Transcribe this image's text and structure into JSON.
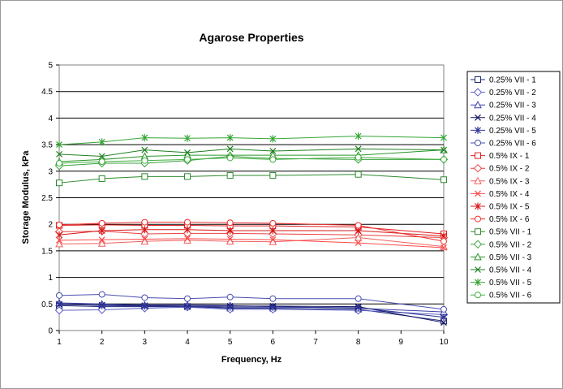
{
  "chart_data": {
    "type": "line",
    "title": "Agarose Properties",
    "xlabel": "Frequency, Hz",
    "ylabel": "Storage Modulus, kPa",
    "xlim": [
      1,
      10
    ],
    "ylim": [
      0,
      5
    ],
    "x_ticks": [
      "1",
      "2",
      "3",
      "4",
      "5",
      "6",
      "7",
      "8",
      "9",
      "10"
    ],
    "y_ticks": [
      "0",
      "0.5",
      "1",
      "1.5",
      "2",
      "2.5",
      "3",
      "3.5",
      "4",
      "4.5",
      "5"
    ],
    "grid": "horizontal",
    "legend_position": "right",
    "x": [
      1,
      2,
      3,
      4,
      5,
      6,
      8,
      10
    ],
    "series": [
      {
        "name": "0.25% VII - 1",
        "color": "#1f2a78",
        "marker": "square",
        "values": [
          0.47,
          0.45,
          0.45,
          0.45,
          0.42,
          0.42,
          0.4,
          0.18
        ]
      },
      {
        "name": "0.25% VII - 2",
        "color": "#5b5fc7",
        "marker": "diamond",
        "values": [
          0.38,
          0.39,
          0.42,
          0.44,
          0.4,
          0.4,
          0.38,
          0.3
        ]
      },
      {
        "name": "0.25% VII - 3",
        "color": "#3a3fa8",
        "marker": "triangle",
        "values": [
          0.52,
          0.5,
          0.48,
          0.48,
          0.47,
          0.45,
          0.42,
          0.35
        ]
      },
      {
        "name": "0.25% VII - 4",
        "color": "#10135e",
        "marker": "x",
        "values": [
          0.49,
          0.48,
          0.47,
          0.46,
          0.46,
          0.46,
          0.45,
          0.15
        ]
      },
      {
        "name": "0.25% VII - 5",
        "color": "#2f3596",
        "marker": "star",
        "values": [
          0.5,
          0.47,
          0.46,
          0.45,
          0.44,
          0.44,
          0.43,
          0.25
        ]
      },
      {
        "name": "0.25% VII - 6",
        "color": "#4a4fb0",
        "marker": "circle",
        "values": [
          0.66,
          0.68,
          0.62,
          0.6,
          0.63,
          0.6,
          0.6,
          0.4
        ]
      },
      {
        "name": "0.5% IX - 1",
        "color": "#e02020",
        "marker": "square",
        "values": [
          1.98,
          1.99,
          1.98,
          1.98,
          1.97,
          1.97,
          1.95,
          1.82
        ]
      },
      {
        "name": "0.5% IX - 2",
        "color": "#e84040",
        "marker": "diamond",
        "values": [
          1.86,
          1.87,
          1.82,
          1.83,
          1.83,
          1.82,
          1.8,
          1.75
        ]
      },
      {
        "name": "0.5% IX - 3",
        "color": "#f06060",
        "marker": "triangle",
        "values": [
          1.63,
          1.64,
          1.68,
          1.7,
          1.68,
          1.67,
          1.75,
          1.58
        ]
      },
      {
        "name": "0.5% IX - 4",
        "color": "#ff4a4a",
        "marker": "x",
        "values": [
          1.7,
          1.71,
          1.72,
          1.73,
          1.72,
          1.71,
          1.65,
          1.56
        ]
      },
      {
        "name": "0.5% IX - 5",
        "color": "#d81818",
        "marker": "star",
        "values": [
          1.8,
          1.88,
          1.9,
          1.9,
          1.88,
          1.88,
          1.88,
          1.78
        ]
      },
      {
        "name": "0.5% IX - 6",
        "color": "#f03030",
        "marker": "circle",
        "values": [
          1.99,
          2.02,
          2.04,
          2.04,
          2.03,
          2.02,
          1.98,
          1.68
        ]
      },
      {
        "name": "0.5% VII - 1",
        "color": "#2e8b2e",
        "marker": "square",
        "values": [
          2.78,
          2.86,
          2.9,
          2.9,
          2.92,
          2.92,
          2.94,
          2.84
        ]
      },
      {
        "name": "0.5% VII - 2",
        "color": "#3ca03c",
        "marker": "diamond",
        "values": [
          3.1,
          3.15,
          3.15,
          3.2,
          3.28,
          3.24,
          3.22,
          3.22
        ]
      },
      {
        "name": "0.5% VII - 3",
        "color": "#2a962a",
        "marker": "triangle",
        "values": [
          3.18,
          3.22,
          3.28,
          3.3,
          3.3,
          3.3,
          3.3,
          3.4
        ]
      },
      {
        "name": "0.5% VII - 4",
        "color": "#1f7f1f",
        "marker": "x",
        "values": [
          3.32,
          3.28,
          3.4,
          3.35,
          3.42,
          3.38,
          3.42,
          3.4
        ]
      },
      {
        "name": "0.5% VII - 5",
        "color": "#35a535",
        "marker": "star",
        "values": [
          3.5,
          3.55,
          3.63,
          3.62,
          3.63,
          3.61,
          3.66,
          3.63
        ]
      },
      {
        "name": "0.5% VII - 6",
        "color": "#40b040",
        "marker": "circle",
        "values": [
          3.15,
          3.18,
          3.2,
          3.22,
          3.25,
          3.22,
          3.26,
          3.22
        ]
      }
    ]
  }
}
